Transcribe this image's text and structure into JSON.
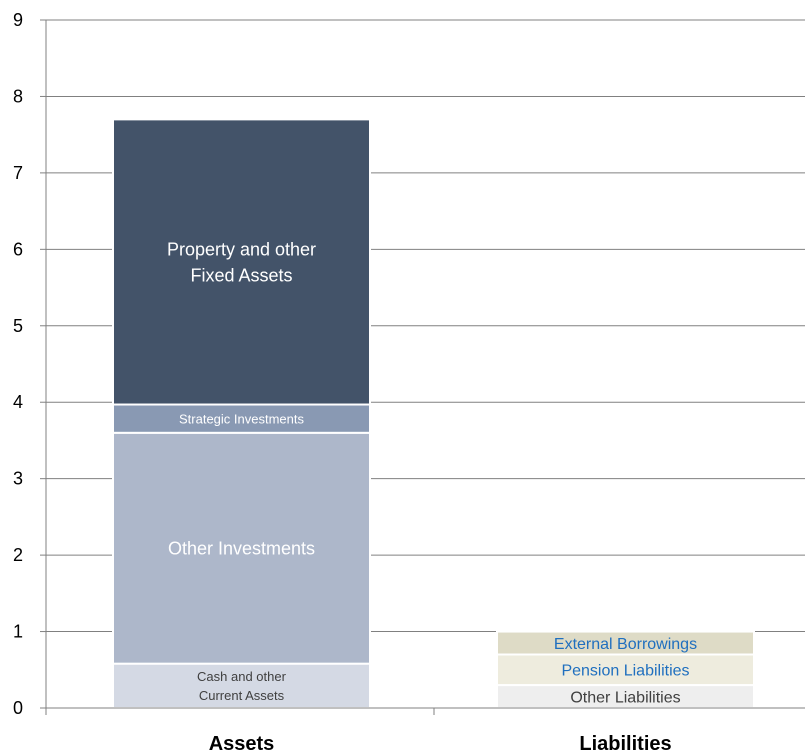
{
  "chart_data": {
    "type": "bar",
    "stacked": true,
    "categories": [
      "Assets",
      "Liabilities"
    ],
    "ylim": [
      0,
      9
    ],
    "yticks": [
      "0",
      "1",
      "2",
      "3",
      "4",
      "5",
      "6",
      "7",
      "8",
      "9"
    ],
    "grid": true,
    "legend": "none",
    "stacks": [
      {
        "category": "Assets",
        "segments": [
          {
            "name": "Cash and other Current Assets",
            "label_lines": [
              "Cash and other",
              "Current Assets"
            ],
            "start": 0,
            "end": 0.58,
            "color": "#d4d9e4",
            "label_color": "#404040",
            "label_size": 13
          },
          {
            "name": "Other Investments",
            "label_lines": [
              "Other Investments"
            ],
            "start": 0.58,
            "end": 3.6,
            "color": "#adb7ca",
            "label_color": "#ffffff",
            "label_size": 18
          },
          {
            "name": "Strategic Investments",
            "label_lines": [
              "Strategic  Investments"
            ],
            "start": 3.6,
            "end": 3.97,
            "color": "#8999b3",
            "label_color": "#ffffff",
            "label_size": 13
          },
          {
            "name": "Property and other Fixed Assets",
            "label_lines": [
              "Property and other",
              "Fixed Assets"
            ],
            "start": 3.97,
            "end": 7.7,
            "color": "#435369",
            "label_color": "#ffffff",
            "label_size": 18
          }
        ]
      },
      {
        "category": "Liabilities",
        "segments": [
          {
            "name": "Other Liabilities",
            "label_lines": [
              "Other Liabilities"
            ],
            "start": 0,
            "end": 0.3,
            "color": "#eeeeee",
            "label_color": "#404040",
            "label_size": 16
          },
          {
            "name": "Pension Liabilities",
            "label_lines": [
              "Pension Liabilities"
            ],
            "start": 0.3,
            "end": 0.7,
            "color": "#eeecde",
            "label_color": "#1f6fbf",
            "label_size": 16
          },
          {
            "name": "External Borrowings",
            "label_lines": [
              "External Borrowings"
            ],
            "start": 0.7,
            "end": 1.0,
            "color": "#dedbc6",
            "label_color": "#1f6fbf",
            "label_size": 16
          }
        ]
      }
    ]
  }
}
